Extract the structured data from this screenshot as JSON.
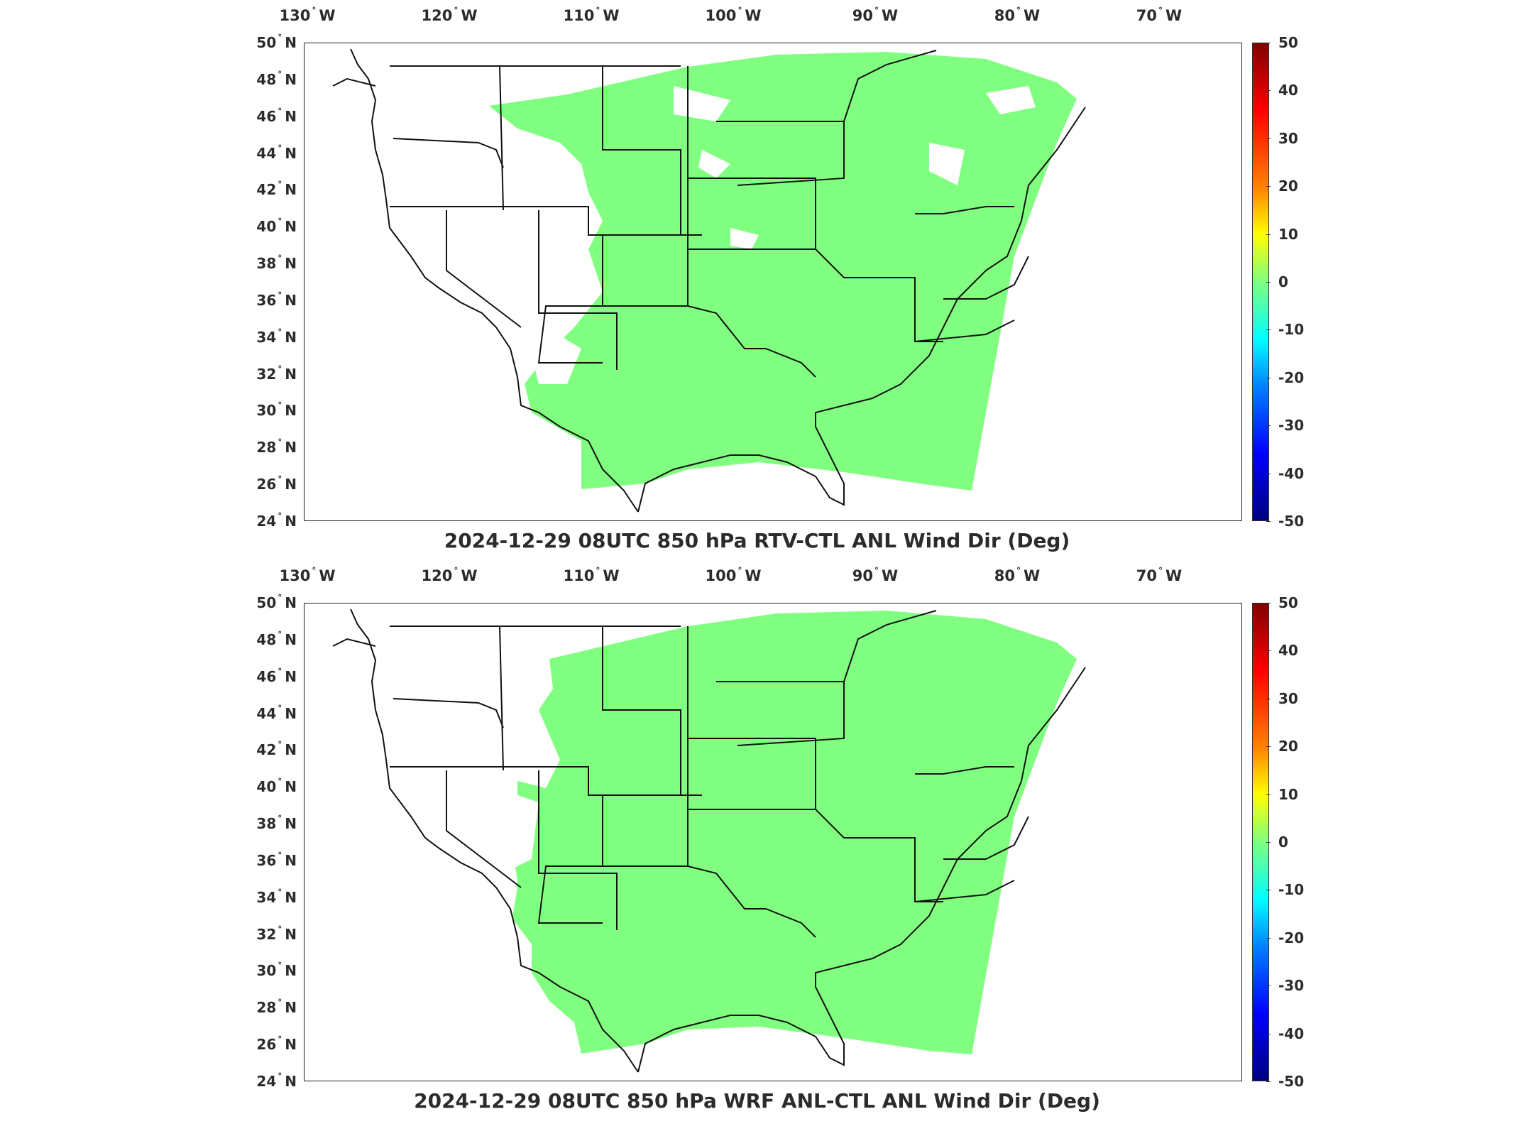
{
  "colors": {
    "field": "#80ff80",
    "lines": "#111111"
  },
  "axes": {
    "lon_labels": [
      "130",
      "120",
      "110",
      "100",
      "90",
      "80",
      "70"
    ],
    "lon_suffix": "W",
    "lat_labels": [
      "50",
      "48",
      "46",
      "44",
      "42",
      "40",
      "38",
      "36",
      "34",
      "32",
      "30",
      "28",
      "26",
      "24"
    ],
    "lat_suffix": "N",
    "deg_symbol": "°"
  },
  "colorbar": {
    "ticks": [
      "50",
      "40",
      "30",
      "20",
      "10",
      "0",
      "-10",
      "-20",
      "-30",
      "-40",
      "-50"
    ],
    "range": [
      -50,
      50
    ],
    "colormap": "jet"
  },
  "panels": [
    {
      "title": "2024-12-29 08UTC 850 hPa RTV-CTL ANL Wind Dir (Deg)"
    },
    {
      "title": "2024-12-29 08UTC 850 hPa WRF ANL-CTL ANL Wind Dir (Deg)"
    }
  ]
}
